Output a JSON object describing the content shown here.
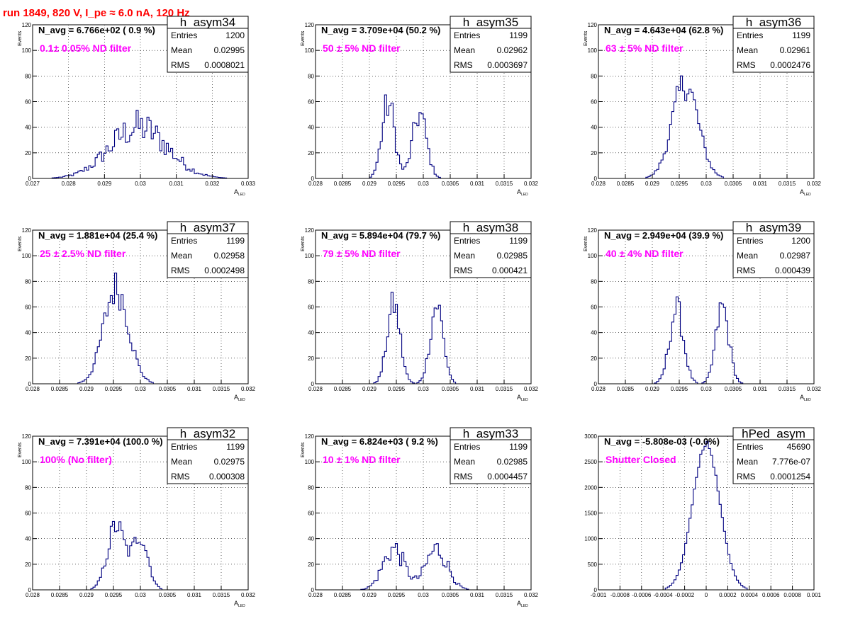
{
  "run_title": "run 1849,   820 V, I_pe ≈ 6.0 nA, 120 Hz",
  "colors": {
    "title": "#ff0000",
    "annotation": "#ff00ff",
    "histogram": "#000080",
    "grid": "#000000"
  },
  "chart_data": [
    {
      "type": "histogram",
      "name": "h_asym34",
      "navg": "N_avg = 6.766e+02 ( 0.9 %)",
      "note": "0.1± 0.05% ND filter",
      "stats": {
        "Entries": "1200",
        "Mean": "0.02995",
        "RMS": "0.0008021"
      },
      "ylabel": "Events",
      "xlabel": "A",
      "xlabel_sub": "LED",
      "xlim": [
        0.027,
        0.033
      ],
      "ylim": [
        0,
        120
      ],
      "xticks": [
        "0.027",
        "0.028",
        "0.029",
        "0.03",
        "0.031",
        "0.032",
        "0.033"
      ],
      "yticks": [
        "0",
        "20",
        "40",
        "60",
        "80",
        "100",
        "120"
      ],
      "grid": true,
      "peaks": [
        0.02995
      ],
      "widths": [
        0.0008
      ],
      "amps": [
        40
      ],
      "ragged": 0.35
    },
    {
      "type": "histogram",
      "name": "h_asym35",
      "navg": "N_avg = 3.709e+04 (50.2 %)",
      "note": "50 ± 5% ND filter",
      "stats": {
        "Entries": "1199",
        "Mean": "0.02962",
        "RMS": "0.0003697"
      },
      "ylabel": "Events",
      "xlabel": "A",
      "xlabel_sub": "LED",
      "xlim": [
        0.028,
        0.032
      ],
      "ylim": [
        0,
        120
      ],
      "xticks": [
        "0.028",
        "0.0285",
        "0.029",
        "0.0295",
        "0.03",
        "0.0305",
        "0.031",
        "0.0315",
        "0.032"
      ],
      "yticks": [
        "0",
        "20",
        "40",
        "60",
        "80",
        "100",
        "120"
      ],
      "grid": true,
      "peaks": [
        0.02935,
        0.02993
      ],
      "widths": [
        0.00012,
        0.00013
      ],
      "amps": [
        58,
        50
      ],
      "ragged": 0.25
    },
    {
      "type": "histogram",
      "name": "h_asym36",
      "navg": "N_avg = 4.643e+04 (62.8 %)",
      "note": "63 ± 5% ND filter",
      "stats": {
        "Entries": "1199",
        "Mean": "0.02961",
        "RMS": "0.0002476"
      },
      "ylabel": "Events",
      "xlabel": "A",
      "xlabel_sub": "LED",
      "xlim": [
        0.028,
        0.032
      ],
      "ylim": [
        0,
        120
      ],
      "xticks": [
        "0.028",
        "0.0285",
        "0.029",
        "0.0295",
        "0.03",
        "0.0305",
        "0.031",
        "0.0315",
        "0.032"
      ],
      "yticks": [
        "0",
        "20",
        "40",
        "60",
        "80",
        "100",
        "120"
      ],
      "grid": true,
      "peaks": [
        0.02961
      ],
      "widths": [
        0.00024
      ],
      "amps": [
        74
      ],
      "ragged": 0.18
    },
    {
      "type": "histogram",
      "name": "h_asym37",
      "navg": "N_avg = 1.881e+04 (25.4 %)",
      "note": "25 ± 2.5% ND filter",
      "stats": {
        "Entries": "1199",
        "Mean": "0.02958",
        "RMS": "0.0002498"
      },
      "ylabel": "Events",
      "xlabel": "A",
      "xlabel_sub": "LED",
      "xlim": [
        0.028,
        0.032
      ],
      "ylim": [
        0,
        120
      ],
      "xticks": [
        "0.028",
        "0.0285",
        "0.029",
        "0.0295",
        "0.03",
        "0.0305",
        "0.031",
        "0.0315",
        "0.032"
      ],
      "yticks": [
        "0",
        "20",
        "40",
        "60",
        "80",
        "100",
        "120"
      ],
      "grid": true,
      "peaks": [
        0.02955
      ],
      "widths": [
        0.00023
      ],
      "amps": [
        75
      ],
      "ragged": 0.2
    },
    {
      "type": "histogram",
      "name": "h_asym38",
      "navg": "N_avg = 5.894e+04 (79.7 %)",
      "note": "79 ± 5% ND filter",
      "stats": {
        "Entries": "1199",
        "Mean": "0.02985",
        "RMS": "0.000421"
      },
      "ylabel": "Events",
      "xlabel": "A",
      "xlabel_sub": "LED",
      "xlim": [
        0.028,
        0.032
      ],
      "ylim": [
        0,
        120
      ],
      "xticks": [
        "0.028",
        "0.0285",
        "0.029",
        "0.0295",
        "0.03",
        "0.0305",
        "0.031",
        "0.0315",
        "0.032"
      ],
      "yticks": [
        "0",
        "20",
        "40",
        "60",
        "80",
        "100",
        "120"
      ],
      "grid": true,
      "peaks": [
        0.02945,
        0.03025
      ],
      "widths": [
        0.00012,
        0.00012
      ],
      "amps": [
        62,
        62
      ],
      "ragged": 0.2
    },
    {
      "type": "histogram",
      "name": "h_asym39",
      "navg": "N_avg = 2.949e+04 (39.9 %)",
      "note": "40 ± 4% ND filter",
      "stats": {
        "Entries": "1200",
        "Mean": "0.02987",
        "RMS": "0.000439"
      },
      "ylabel": "Events",
      "xlabel": "A",
      "xlabel_sub": "LED",
      "xlim": [
        0.028,
        0.032
      ],
      "ylim": [
        0,
        120
      ],
      "xticks": [
        "0.028",
        "0.0285",
        "0.029",
        "0.0295",
        "0.03",
        "0.0305",
        "0.031",
        "0.0315",
        "0.032"
      ],
      "yticks": [
        "0",
        "20",
        "40",
        "60",
        "80",
        "100",
        "120"
      ],
      "grid": true,
      "peaks": [
        0.02945,
        0.0303
      ],
      "widths": [
        0.00013,
        0.00012
      ],
      "amps": [
        58,
        60
      ],
      "ragged": 0.2
    },
    {
      "type": "histogram",
      "name": "h_asym32",
      "navg": "N_avg = 7.391e+04 (100.0 %)",
      "note": "100% (No filter)",
      "stats": {
        "Entries": "1199",
        "Mean": "0.02975",
        "RMS": "0.000308"
      },
      "ylabel": "Events",
      "xlabel": "A",
      "xlabel_sub": "LED",
      "xlim": [
        0.028,
        0.032
      ],
      "ylim": [
        0,
        120
      ],
      "xticks": [
        "0.028",
        "0.0285",
        "0.029",
        "0.0295",
        "0.03",
        "0.0305",
        "0.031",
        "0.0315",
        "0.032"
      ],
      "yticks": [
        "0",
        "20",
        "40",
        "60",
        "80",
        "100",
        "120"
      ],
      "grid": true,
      "peaks": [
        0.02955,
        0.03
      ],
      "widths": [
        0.00016,
        0.00014
      ],
      "amps": [
        50,
        42
      ],
      "ragged": 0.2
    },
    {
      "type": "histogram",
      "name": "h_asym33",
      "navg": "N_avg = 6.824e+03 ( 9.2 %)",
      "note": "10 ± 1% ND filter",
      "stats": {
        "Entries": "1199",
        "Mean": "0.02985",
        "RMS": "0.0004457"
      },
      "ylabel": "Events",
      "xlabel": "A",
      "xlabel_sub": "LED",
      "xlim": [
        0.028,
        0.032
      ],
      "ylim": [
        0,
        120
      ],
      "xticks": [
        "0.028",
        "0.0285",
        "0.029",
        "0.0295",
        "0.03",
        "0.0305",
        "0.031",
        "0.0315",
        "0.032"
      ],
      "yticks": [
        "0",
        "20",
        "40",
        "60",
        "80",
        "100",
        "120"
      ],
      "grid": true,
      "peaks": [
        0.02945,
        0.03025
      ],
      "widths": [
        0.0002,
        0.0002
      ],
      "amps": [
        32,
        32
      ],
      "ragged": 0.3
    },
    {
      "type": "histogram",
      "name": "hPed_asym",
      "navg": "N_avg = -5.808e-03 (-0.0%)",
      "note": "Shutter Closed",
      "stats": {
        "Entries": "45690",
        "Mean": "7.776e-07",
        "RMS": "0.0001254"
      },
      "ylabel": "",
      "xlabel": "",
      "xlabel_sub": "",
      "xlim": [
        -0.001,
        0.001
      ],
      "ylim": [
        0,
        3000
      ],
      "xticks": [
        "-0.001",
        "-0.0008",
        "-0.0006",
        "-0.0004",
        "-0.0002",
        "0",
        "0.0002",
        "0.0004",
        "0.0006",
        "0.0008",
        "0.001"
      ],
      "yticks": [
        "0",
        "500",
        "1000",
        "1500",
        "2000",
        "2500",
        "3000"
      ],
      "grid": true,
      "peaks": [
        0.0
      ],
      "widths": [
        0.000125
      ],
      "amps": [
        2850
      ],
      "ragged": 0.02
    }
  ]
}
